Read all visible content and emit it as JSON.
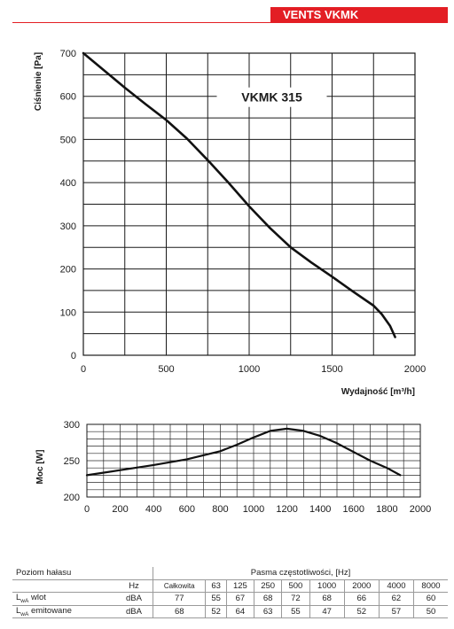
{
  "header": {
    "title": "VENTS VKMK"
  },
  "chart_data": [
    {
      "type": "line",
      "title": "VKMK 315",
      "xlabel": "Wydajność [m³/h]",
      "ylabel": "Ciśnienie [Pa]",
      "xlim": [
        0,
        2000
      ],
      "ylim": [
        0,
        700
      ],
      "xticks": [
        0,
        500,
        1000,
        1500,
        2000
      ],
      "yticks": [
        0,
        100,
        200,
        300,
        400,
        500,
        600,
        700
      ],
      "grid": true,
      "series": [
        {
          "values": [
            [
              0,
              700
            ],
            [
              125,
              660
            ],
            [
              250,
              620
            ],
            [
              375,
              582
            ],
            [
              500,
              545
            ],
            [
              625,
              502
            ],
            [
              750,
              452
            ],
            [
              875,
              400
            ],
            [
              1000,
              345
            ],
            [
              1125,
              295
            ],
            [
              1250,
              250
            ],
            [
              1375,
              215
            ],
            [
              1500,
              182
            ],
            [
              1625,
              148
            ],
            [
              1750,
              115
            ],
            [
              1800,
              95
            ],
            [
              1850,
              68
            ],
            [
              1880,
              42
            ]
          ]
        }
      ]
    },
    {
      "type": "line",
      "ylabel": "Moc [W]",
      "xlim": [
        0,
        2000
      ],
      "ylim": [
        200,
        300
      ],
      "xticks": [
        0,
        200,
        400,
        600,
        800,
        1000,
        1200,
        1400,
        1600,
        1800,
        2000
      ],
      "yticks": [
        200,
        250,
        300
      ],
      "grid": true,
      "series": [
        {
          "values": [
            [
              0,
              230
            ],
            [
              200,
              237
            ],
            [
              400,
              244
            ],
            [
              600,
              252
            ],
            [
              800,
              263
            ],
            [
              900,
              272
            ],
            [
              1000,
              282
            ],
            [
              1100,
              291
            ],
            [
              1200,
              294
            ],
            [
              1300,
              291
            ],
            [
              1400,
              284
            ],
            [
              1500,
              274
            ],
            [
              1600,
              262
            ],
            [
              1700,
              250
            ],
            [
              1800,
              240
            ],
            [
              1880,
              230
            ]
          ]
        }
      ]
    }
  ],
  "noise_table": {
    "title_left": "Poziom hałasu",
    "title_right": "Pasma częstotliwości, [Hz]",
    "hz_label": "Hz",
    "total_label": "Całkowita",
    "bands": [
      "63",
      "125",
      "250",
      "500",
      "1000",
      "2000",
      "4000",
      "8000"
    ],
    "rows": [
      {
        "prefix": "L",
        "sub": "wA",
        "suffix": " wlot",
        "unit": "dBA",
        "total": "77",
        "values": [
          "55",
          "67",
          "68",
          "72",
          "68",
          "66",
          "62",
          "60"
        ]
      },
      {
        "prefix": "L",
        "sub": "wA",
        "suffix": " emitowane",
        "unit": "dBA",
        "total": "68",
        "values": [
          "52",
          "64",
          "63",
          "55",
          "47",
          "52",
          "57",
          "50"
        ]
      }
    ]
  }
}
